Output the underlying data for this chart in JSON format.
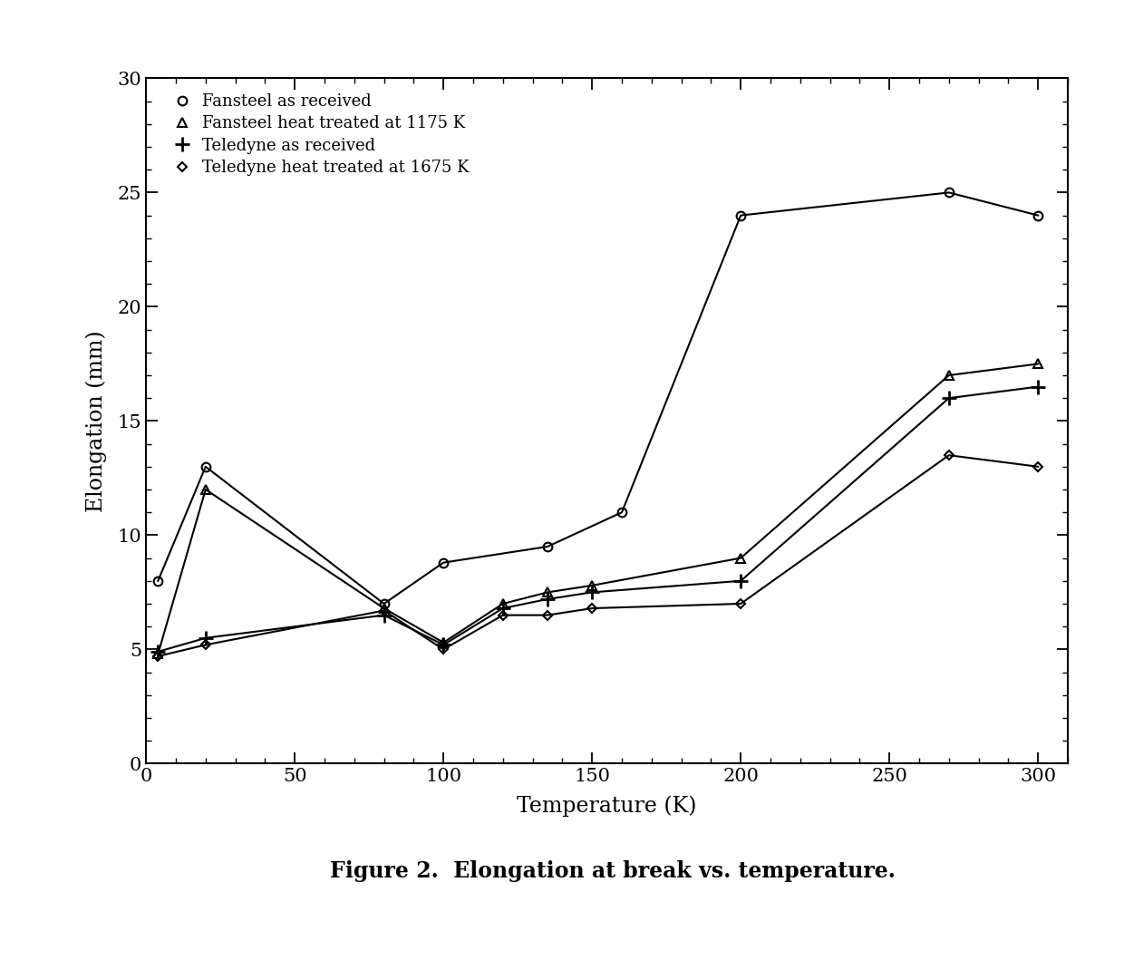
{
  "series": [
    {
      "label": "Fansteel as received",
      "marker": "o",
      "x": [
        4,
        20,
        80,
        100,
        135,
        160,
        200,
        270,
        300
      ],
      "y": [
        8.0,
        13.0,
        7.0,
        8.8,
        9.5,
        11.0,
        24.0,
        25.0,
        24.0
      ]
    },
    {
      "label": "Fansteel heat treated at 1175 K",
      "marker": "^",
      "x": [
        4,
        20,
        80,
        100,
        120,
        135,
        150,
        200,
        270,
        300
      ],
      "y": [
        4.8,
        12.0,
        6.8,
        5.3,
        7.0,
        7.5,
        7.8,
        9.0,
        17.0,
        17.5
      ]
    },
    {
      "label": "Teledyne as received",
      "marker": "+",
      "x": [
        4,
        20,
        80,
        100,
        120,
        135,
        150,
        200,
        270,
        300
      ],
      "y": [
        4.9,
        5.5,
        6.5,
        5.2,
        6.8,
        7.2,
        7.5,
        8.0,
        16.0,
        16.5
      ]
    },
    {
      "label": "Teledyne heat treated at 1675 K",
      "marker": "D",
      "x": [
        4,
        20,
        80,
        100,
        120,
        135,
        150,
        200,
        270,
        300
      ],
      "y": [
        4.7,
        5.2,
        6.7,
        5.0,
        6.5,
        6.5,
        6.8,
        7.0,
        13.5,
        13.0
      ]
    }
  ],
  "xlabel": "Temperature (K)",
  "ylabel": "Elongation (mm)",
  "caption": "Figure 2.  Elongation at break vs. temperature.",
  "xlim": [
    0,
    310
  ],
  "ylim": [
    0,
    30
  ],
  "xticks": [
    0,
    50,
    100,
    150,
    200,
    250,
    300
  ],
  "yticks": [
    0,
    5,
    10,
    15,
    20,
    25,
    30
  ],
  "color": "#000000",
  "background_color": "#ffffff",
  "linewidth": 1.5,
  "markersize": 7
}
